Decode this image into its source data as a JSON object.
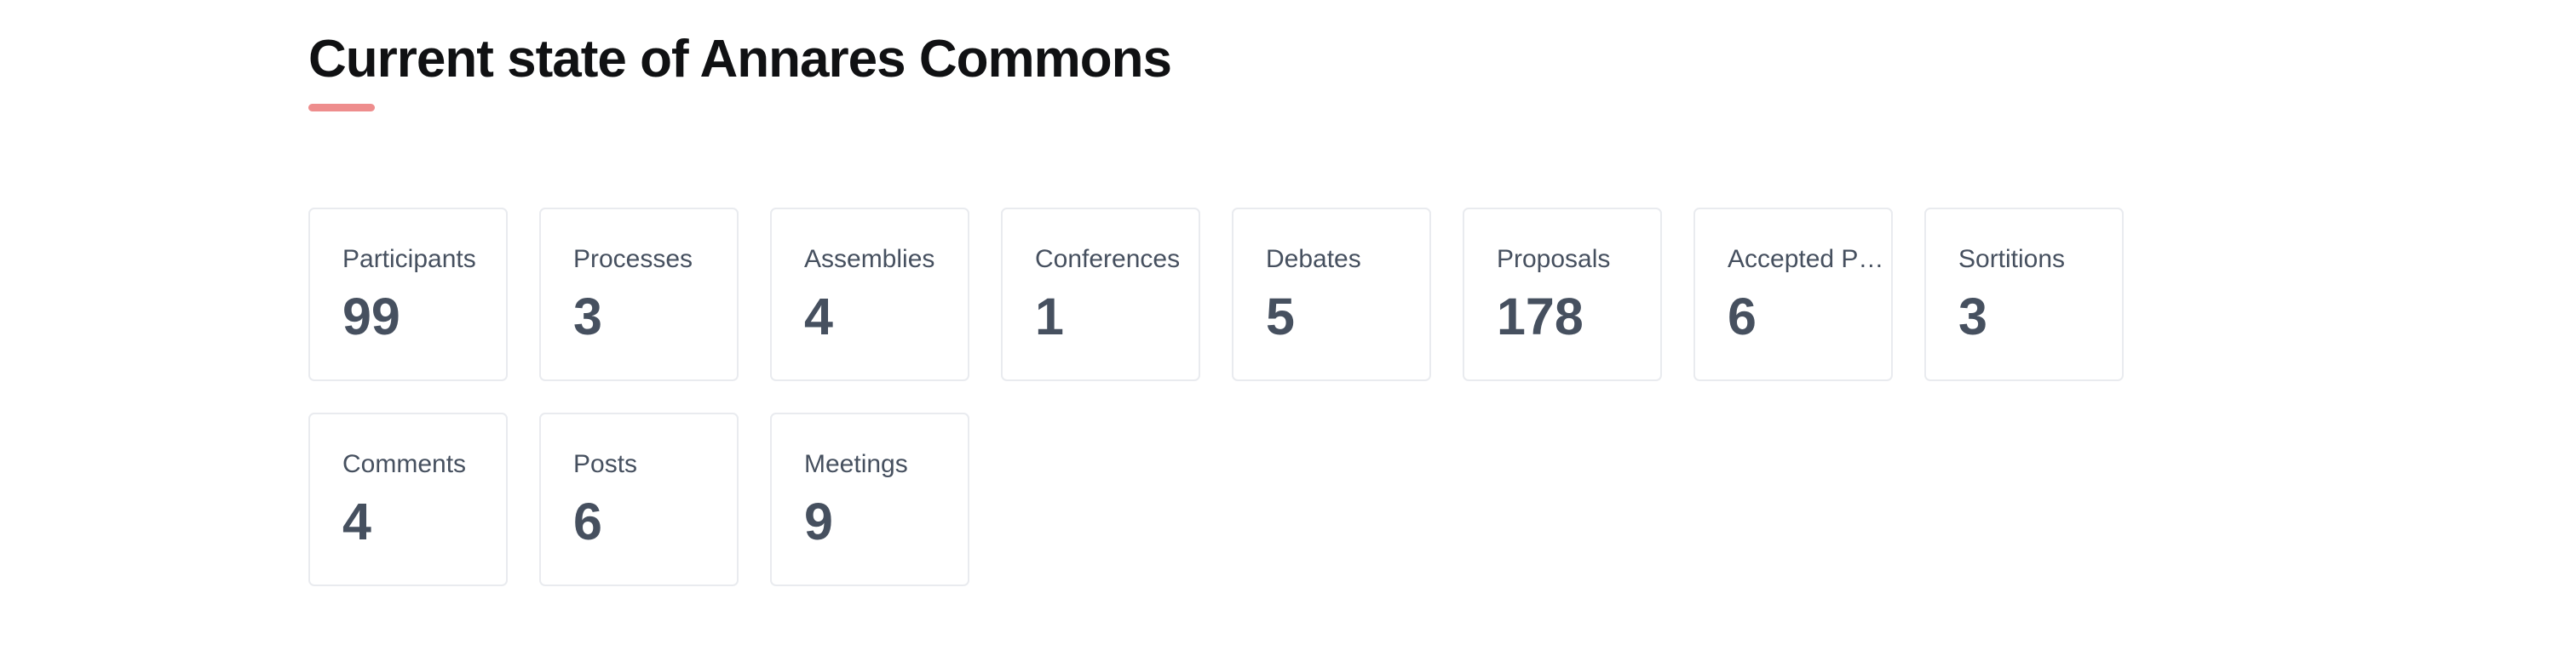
{
  "header": {
    "title": "Current state of Annares Commons"
  },
  "colors": {
    "accent_underline": "#ee8d8d",
    "text_dark": "#46505f",
    "card_border": "#e9ebef",
    "title_text": "#101113",
    "page_background": "#ffffff"
  },
  "stats": {
    "cards": [
      {
        "label": "Participants",
        "value": "99"
      },
      {
        "label": "Processes",
        "value": "3"
      },
      {
        "label": "Assemblies",
        "value": "4"
      },
      {
        "label": "Conferences",
        "value": "1"
      },
      {
        "label": "Debates",
        "value": "5"
      },
      {
        "label": "Proposals",
        "value": "178"
      },
      {
        "label": "Accepted P…",
        "value": "6"
      },
      {
        "label": "Sortitions",
        "value": "3"
      },
      {
        "label": "Comments",
        "value": "4"
      },
      {
        "label": "Posts",
        "value": "6"
      },
      {
        "label": "Meetings",
        "value": "9"
      }
    ]
  }
}
